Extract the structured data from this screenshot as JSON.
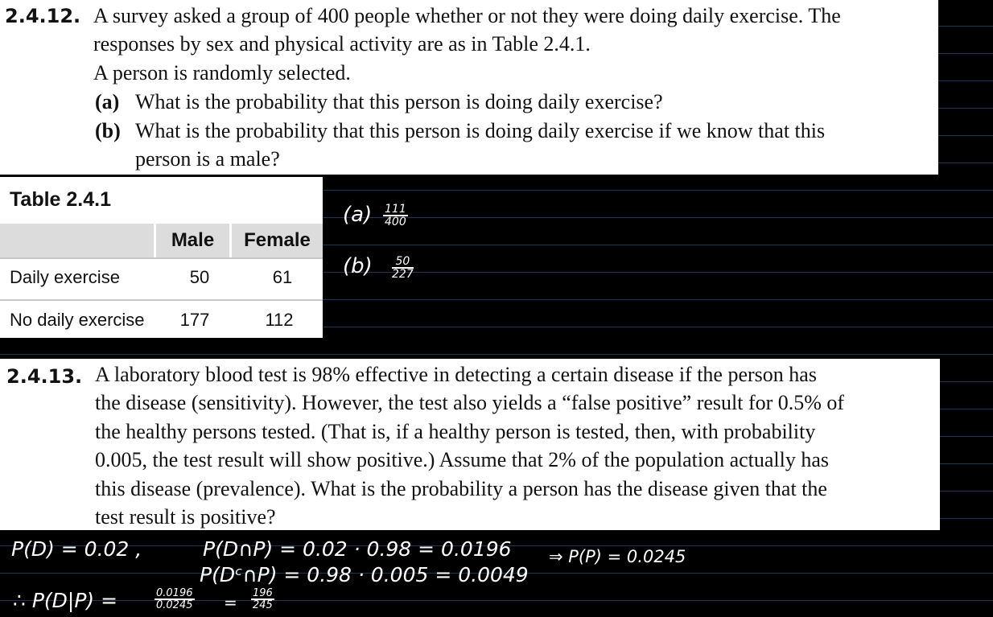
{
  "problem_12": {
    "number": "2.4.12.",
    "lines": [
      "A survey asked a group of 400 people whether or not they were doing daily exercise. The",
      "responses by sex and physical activity are as in Table 2.4.1.",
      "A person is randomly selected."
    ],
    "part_a_label": "(a)",
    "part_a_text": "What is the probability that this person is doing daily exercise?",
    "part_b_label": "(b)",
    "part_b_line1": "What is the probability that this person is doing daily exercise if we know that this",
    "part_b_line2": "person is a male?"
  },
  "table": {
    "caption": "Table 2.4.1",
    "columns": [
      "Male",
      "Female"
    ],
    "rows": [
      {
        "label": "Daily exercise",
        "male": "50",
        "female": "61"
      },
      {
        "label": "No daily exercise",
        "male": "177",
        "female": "112"
      }
    ]
  },
  "handwritten_answers_12": {
    "a_label": "(a)",
    "a_num": "111",
    "a_den": "400",
    "b_label": "(b)",
    "b_num": "50",
    "b_den": "227"
  },
  "problem_13": {
    "number": "2.4.13.",
    "lines": [
      "A laboratory blood test is 98% effective in detecting a certain disease if the person has",
      "the disease (sensitivity). However, the test also yields a “false positive” result for 0.5% of",
      "the healthy persons tested. (That is, if a healthy person is tested, then, with probability",
      "0.005, the test result will show positive.) Assume that 2% of the population actually has",
      "this disease (prevalence). What is the probability a person has the disease given that the",
      "test result is positive?"
    ]
  },
  "handwritten_work_13": {
    "line1_left": "P(D) = 0.02   ,",
    "line1_mid": "P(D∩P) = 0.02 · 0.98 = 0.0196",
    "line1_right": "⇒ P(P) = 0.0245",
    "line2_mid": "P(Dᶜ∩P) = 0.98 · 0.005 = 0.0049",
    "line3_prefix": "∴ P(D|P) =",
    "frac1_num": "0.0196",
    "frac1_den": "0.0245",
    "equals": "=",
    "frac2_num": "196",
    "frac2_den": "245"
  }
}
